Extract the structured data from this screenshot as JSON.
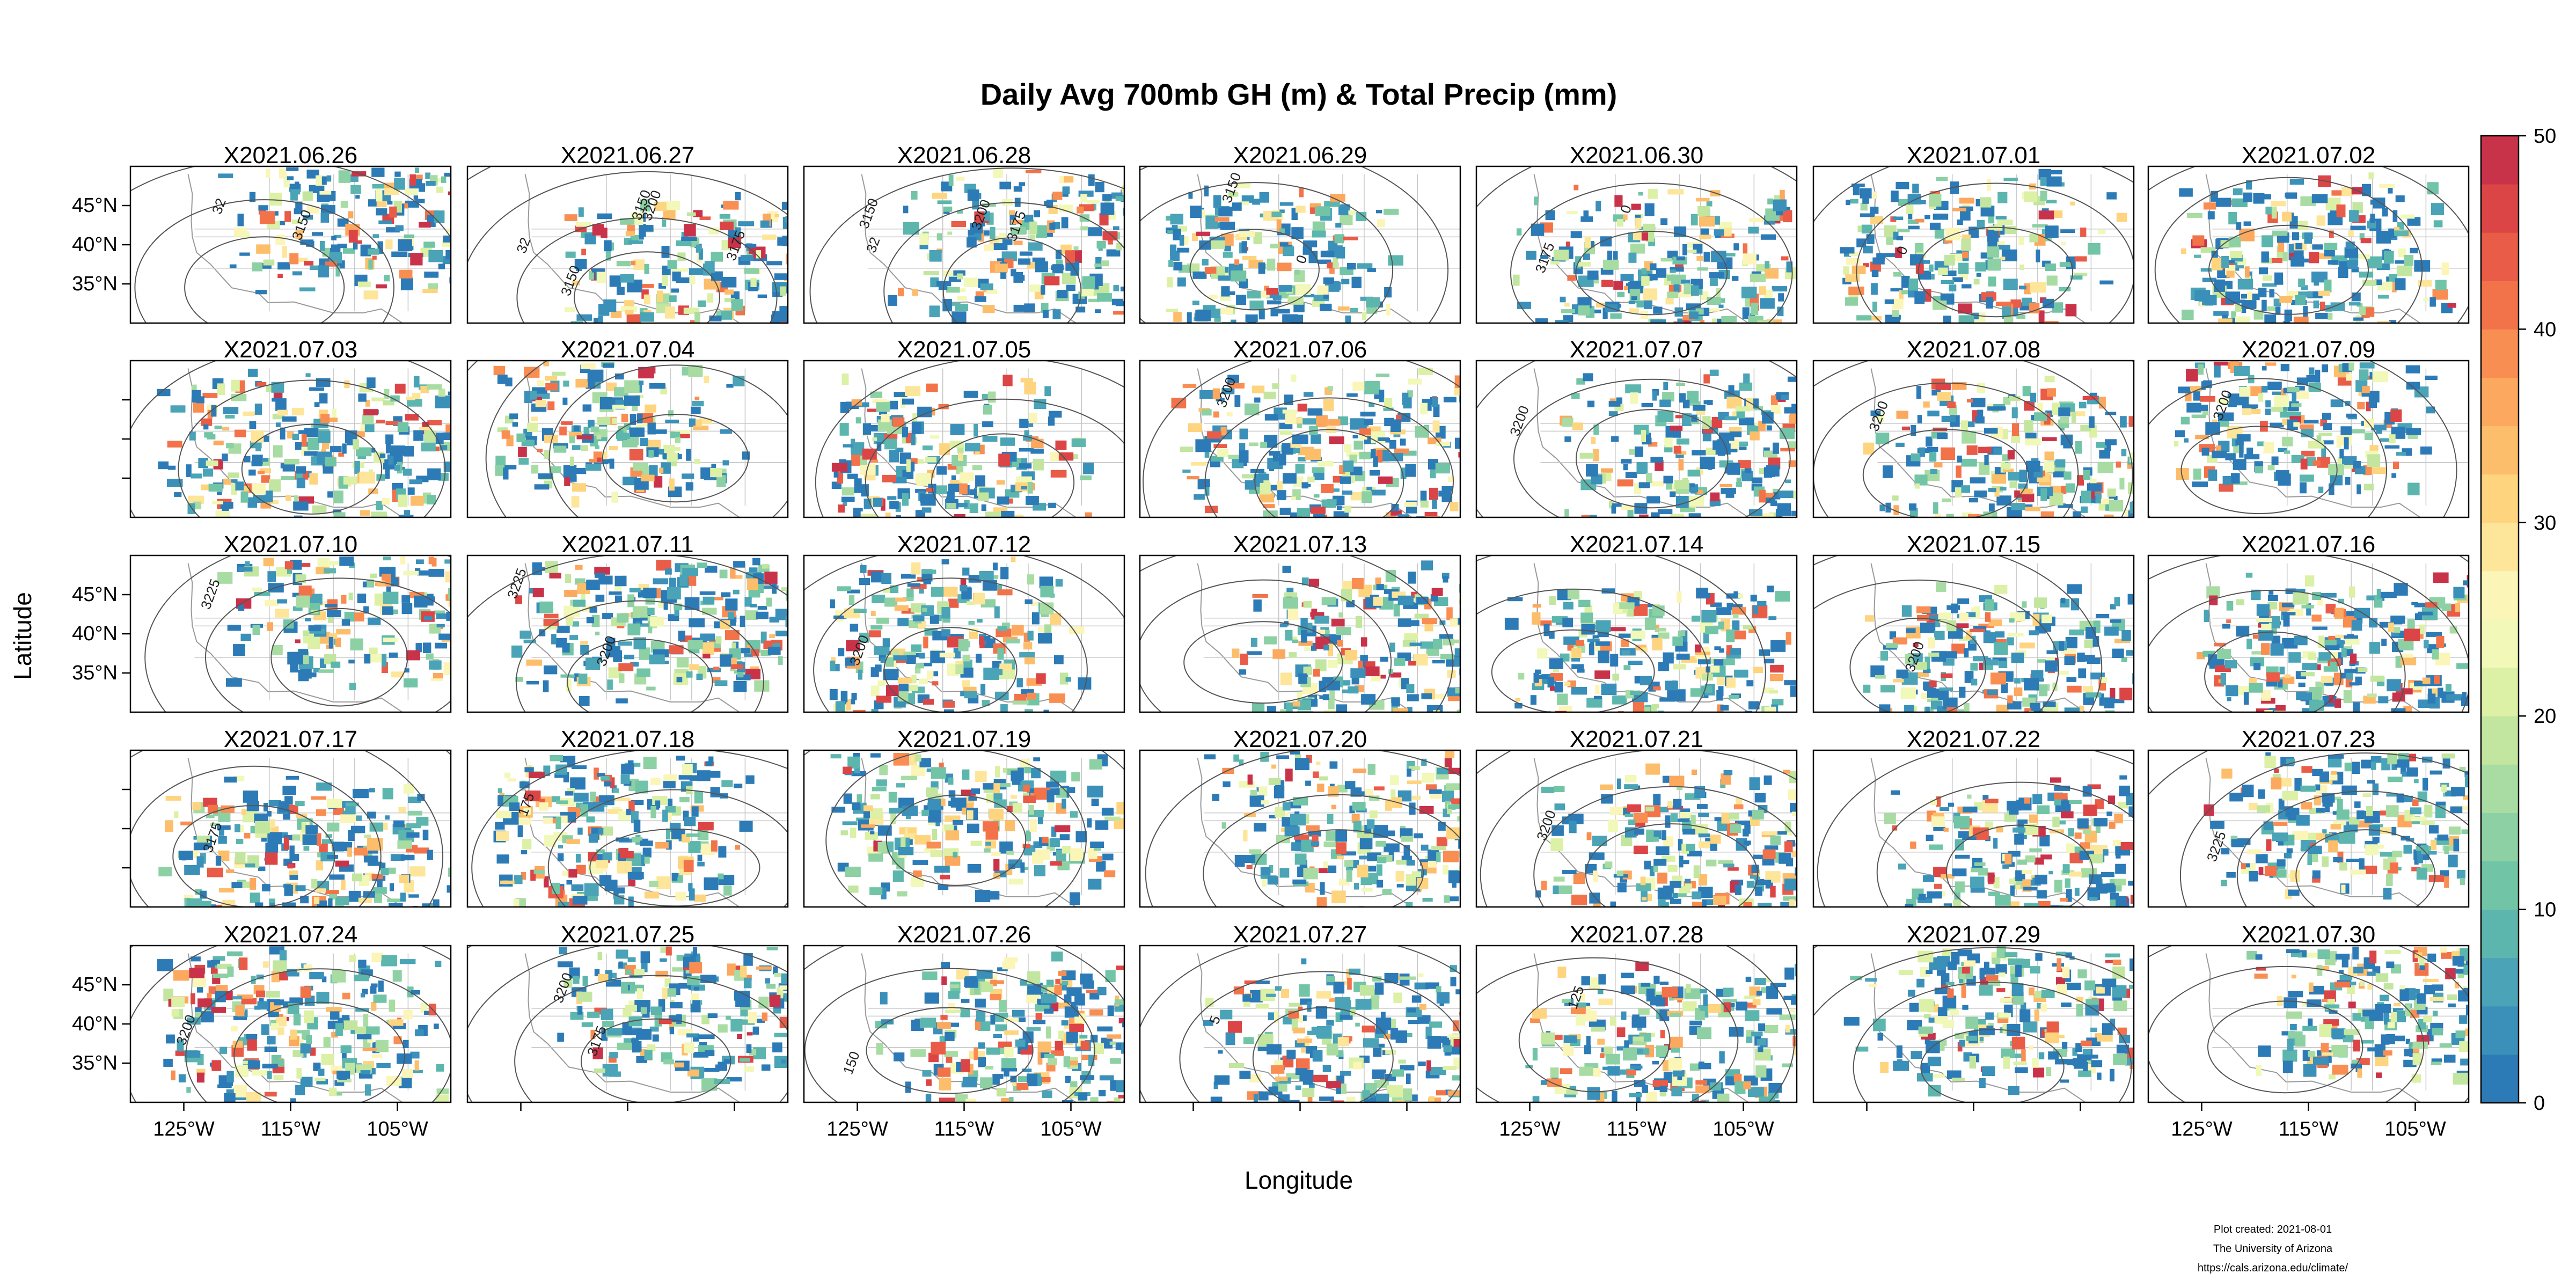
{
  "chart_data": {
    "type": "heatmap",
    "title": "Daily Avg 700mb GH (m) & Total Precip (mm)",
    "xlabel": "Longitude",
    "ylabel": "Latitude",
    "grid": false,
    "layout": {
      "columns": 7,
      "rows": 5
    },
    "panels": [
      {
        "label": "X2021.06.26",
        "contours": [
          "32",
          "3150"
        ]
      },
      {
        "label": "X2021.06.27",
        "contours": [
          "32",
          "3200",
          "3175",
          "3150",
          "3150"
        ]
      },
      {
        "label": "X2021.06.28",
        "contours": [
          "32",
          "3200",
          "3175",
          "3150"
        ]
      },
      {
        "label": "X2021.06.29",
        "contours": [
          "3150",
          "0"
        ]
      },
      {
        "label": "X2021.06.30",
        "contours": [
          "3175",
          "0"
        ]
      },
      {
        "label": "X2021.07.01",
        "contours": [
          "0"
        ]
      },
      {
        "label": "X2021.07.02",
        "contours": []
      },
      {
        "label": "X2021.07.03",
        "contours": []
      },
      {
        "label": "X2021.07.04",
        "contours": []
      },
      {
        "label": "X2021.07.05",
        "contours": []
      },
      {
        "label": "X2021.07.06",
        "contours": [
          "3200"
        ]
      },
      {
        "label": "X2021.07.07",
        "contours": [
          "3200"
        ]
      },
      {
        "label": "X2021.07.08",
        "contours": [
          "3200"
        ]
      },
      {
        "label": "X2021.07.09",
        "contours": [
          "3200"
        ]
      },
      {
        "label": "X2021.07.10",
        "contours": [
          "3225"
        ]
      },
      {
        "label": "X2021.07.11",
        "contours": [
          "3225",
          "3200"
        ]
      },
      {
        "label": "X2021.07.12",
        "contours": [
          "3200"
        ]
      },
      {
        "label": "X2021.07.13",
        "contours": []
      },
      {
        "label": "X2021.07.14",
        "contours": []
      },
      {
        "label": "X2021.07.15",
        "contours": [
          "3200"
        ]
      },
      {
        "label": "X2021.07.16",
        "contours": []
      },
      {
        "label": "X2021.07.17",
        "contours": [
          "3175"
        ]
      },
      {
        "label": "X2021.07.18",
        "contours": [
          "175"
        ]
      },
      {
        "label": "X2021.07.19",
        "contours": []
      },
      {
        "label": "X2021.07.20",
        "contours": []
      },
      {
        "label": "X2021.07.21",
        "contours": [
          "3200"
        ]
      },
      {
        "label": "X2021.07.22",
        "contours": []
      },
      {
        "label": "X2021.07.23",
        "contours": [
          "3225"
        ]
      },
      {
        "label": "X2021.07.24",
        "contours": [
          "3200"
        ]
      },
      {
        "label": "X2021.07.25",
        "contours": [
          "3200",
          "3175"
        ]
      },
      {
        "label": "X2021.07.26",
        "contours": [
          "150"
        ]
      },
      {
        "label": "X2021.07.27",
        "contours": [
          "5"
        ]
      },
      {
        "label": "X2021.07.28",
        "contours": [
          "125"
        ]
      },
      {
        "label": "X2021.07.29",
        "contours": []
      },
      {
        "label": "X2021.07.30",
        "contours": []
      }
    ],
    "x_ticks": [
      "125°W",
      "115°W",
      "105°W"
    ],
    "x_tick_values": [
      -125,
      -115,
      -105
    ],
    "y_ticks": [
      "45°N",
      "40°N",
      "35°N"
    ],
    "y_tick_values": [
      45,
      40,
      35
    ],
    "xlim": [
      -130,
      -100
    ],
    "ylim": [
      30,
      50
    ],
    "colorbar": {
      "min": 0,
      "max": 50,
      "ticks": [
        "0",
        "10",
        "20",
        "30",
        "40",
        "50"
      ],
      "colors": [
        "#2c7bb6",
        "#3a90b9",
        "#4aa3b6",
        "#5cb6ae",
        "#72c4a6",
        "#8dd0a4",
        "#a8dca3",
        "#c2e6a0",
        "#dcf0a6",
        "#f1f8b8",
        "#fcf5b8",
        "#fde69a",
        "#fed47f",
        "#fdbe6b",
        "#fca85e",
        "#f98e52",
        "#f2734a",
        "#e95c47",
        "#dc4546",
        "#c9334a"
      ]
    }
  },
  "footer": {
    "line1": "Plot created: 2021-08-01",
    "line2": "The University of Arizona",
    "line3": "https://cals.arizona.edu/climate/"
  }
}
